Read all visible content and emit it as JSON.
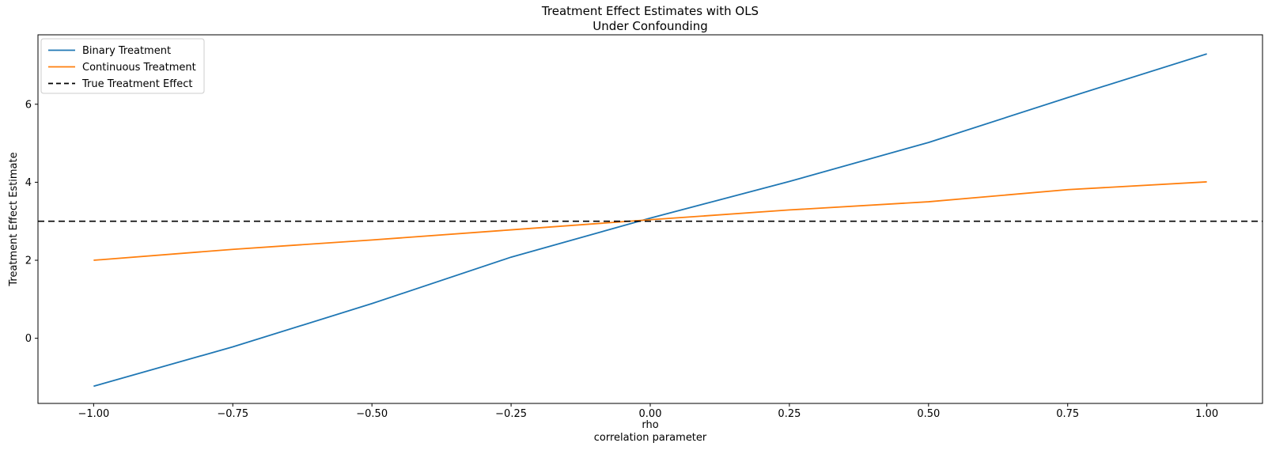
{
  "chart": {
    "title_line1": "Treatment Effect Estimates with OLS",
    "title_line2": "Under Confounding",
    "xlabel_line1": "rho",
    "xlabel_line2": "correlation parameter",
    "ylabel": "Treatment Effect Estimate"
  },
  "chart_data": {
    "type": "line",
    "title": "Treatment Effect Estimates with OLS\nUnder Confounding",
    "xlabel": "rho\ncorrelation parameter",
    "ylabel": "Treatment Effect Estimate",
    "xlim": [
      -1.1,
      1.1
    ],
    "ylim": [
      -1.67,
      7.78
    ],
    "x_ticks": [
      -1.0,
      -0.75,
      -0.5,
      -0.25,
      0.0,
      0.25,
      0.5,
      0.75,
      1.0
    ],
    "x_tick_labels": [
      "−1.00",
      "−0.75",
      "−0.50",
      "−0.25",
      "0.00",
      "0.25",
      "0.50",
      "0.75",
      "1.00"
    ],
    "y_ticks": [
      0,
      2,
      4,
      6
    ],
    "y_tick_labels": [
      "0",
      "2",
      "4",
      "6"
    ],
    "grid": false,
    "legend_position": "upper left",
    "x": [
      -1.0,
      -0.75,
      -0.5,
      -0.25,
      0.0,
      0.25,
      0.5,
      0.75,
      1.0
    ],
    "series": [
      {
        "name": "Binary Treatment",
        "color": "#1f77b4",
        "style": "solid",
        "values": [
          -1.23,
          -0.22,
          0.89,
          2.08,
          3.08,
          4.02,
          5.02,
          6.17,
          7.29
        ]
      },
      {
        "name": "Continuous Treatment",
        "color": "#ff7f0e",
        "style": "solid",
        "values": [
          2.0,
          2.28,
          2.52,
          2.78,
          3.04,
          3.29,
          3.5,
          3.81,
          4.01
        ]
      },
      {
        "name": "True Treatment Effect",
        "color": "#000000",
        "style": "dashed",
        "hline": 3.0
      }
    ]
  }
}
